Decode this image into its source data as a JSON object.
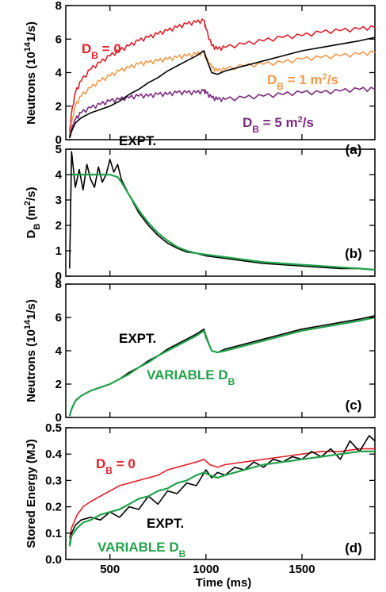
{
  "colors": {
    "black": "#000000",
    "red": "#e0202a",
    "orange": "#f29a4e",
    "purple": "#7b2a7e",
    "green": "#22a24a"
  },
  "xaxis": {
    "label": "Time (ms)",
    "range": [
      270,
      1880
    ],
    "ticks": [
      500,
      1000,
      1500
    ]
  },
  "chart_data": [
    {
      "panel": "(a)",
      "type": "line",
      "ylabel": {
        "main": "Neutrons (10",
        "sup": "14",
        "tail": "1/s)"
      },
      "ylim": [
        0,
        8
      ],
      "yticks": [
        0,
        2,
        4,
        6,
        8
      ],
      "annotations": [
        {
          "key": "red",
          "text": "D",
          "sub": "B",
          "rest": " = 0",
          "sup": "",
          "tail": ""
        },
        {
          "key": "orange",
          "text": "D",
          "sub": "B",
          "rest": " = 1 m",
          "sup": "2",
          "tail": "/s"
        },
        {
          "key": "purple",
          "text": "D",
          "sub": "B",
          "rest": " = 5 m",
          "sup": "2",
          "tail": "/s"
        },
        {
          "key": "black",
          "text": "EXPT.",
          "sub": "",
          "rest": "",
          "sup": "",
          "tail": ""
        }
      ],
      "series": [
        {
          "color": "red",
          "x": [
            290,
            300,
            320,
            350,
            400,
            450,
            500,
            550,
            600,
            650,
            700,
            750,
            800,
            850,
            900,
            950,
            990,
            1000,
            1030,
            1060,
            1100,
            1200,
            1300,
            1400,
            1500,
            1600,
            1700,
            1800,
            1880
          ],
          "y": [
            0.4,
            1.6,
            2.8,
            3.5,
            4.2,
            4.6,
            5.0,
            5.3,
            5.6,
            5.9,
            6.1,
            6.3,
            6.5,
            6.7,
            6.9,
            7.0,
            7.1,
            6.6,
            5.6,
            5.4,
            5.5,
            5.7,
            5.9,
            6.1,
            6.2,
            6.4,
            6.5,
            6.6,
            6.7
          ]
        },
        {
          "color": "orange",
          "x": [
            290,
            300,
            320,
            350,
            400,
            450,
            500,
            550,
            600,
            650,
            700,
            750,
            800,
            850,
            900,
            950,
            990,
            1000,
            1030,
            1060,
            1100,
            1200,
            1300,
            1400,
            1500,
            1600,
            1700,
            1800,
            1880
          ],
          "y": [
            0.2,
            1.0,
            2.0,
            2.6,
            3.1,
            3.5,
            3.8,
            4.1,
            4.3,
            4.5,
            4.6,
            4.7,
            4.8,
            4.9,
            5.0,
            5.1,
            5.2,
            4.9,
            4.3,
            4.1,
            4.2,
            4.4,
            4.5,
            4.6,
            4.8,
            4.9,
            5.0,
            5.1,
            5.2
          ]
        },
        {
          "color": "purple",
          "x": [
            290,
            300,
            320,
            350,
            400,
            450,
            500,
            550,
            600,
            650,
            700,
            750,
            800,
            850,
            900,
            950,
            990,
            1000,
            1030,
            1060,
            1100,
            1200,
            1300,
            1400,
            1500,
            1600,
            1700,
            1800,
            1880
          ],
          "y": [
            0.1,
            0.6,
            1.2,
            1.6,
            1.9,
            2.1,
            2.3,
            2.4,
            2.5,
            2.6,
            2.6,
            2.7,
            2.7,
            2.8,
            2.8,
            2.8,
            2.9,
            2.8,
            2.5,
            2.4,
            2.4,
            2.5,
            2.6,
            2.7,
            2.8,
            2.8,
            2.9,
            3.0,
            3.0
          ]
        },
        {
          "color": "black",
          "x": [
            290,
            300,
            320,
            350,
            400,
            450,
            500,
            550,
            600,
            650,
            700,
            750,
            800,
            850,
            900,
            950,
            990,
            1000,
            1030,
            1060,
            1100,
            1200,
            1300,
            1400,
            1500,
            1600,
            1700,
            1800,
            1880
          ],
          "y": [
            0.1,
            0.5,
            1.0,
            1.3,
            1.6,
            1.8,
            2.0,
            2.3,
            2.7,
            3.0,
            3.4,
            3.7,
            4.1,
            4.4,
            4.7,
            5.0,
            5.3,
            4.9,
            4.0,
            3.9,
            4.1,
            4.4,
            4.7,
            5.0,
            5.3,
            5.5,
            5.7,
            5.9,
            6.1
          ]
        }
      ]
    },
    {
      "panel": "(b)",
      "type": "line",
      "ylabel": {
        "main": "D",
        "sub": "B",
        "tail": " (m",
        "sup": "2",
        "tail2": "/s)"
      },
      "ylim": [
        0,
        5
      ],
      "yticks": [
        0,
        1,
        2,
        3,
        4,
        5
      ],
      "series": [
        {
          "color": "black",
          "x": [
            290,
            300,
            320,
            340,
            360,
            380,
            400,
            420,
            440,
            460,
            480,
            500,
            520,
            540,
            560,
            600,
            650,
            700,
            750,
            800,
            850,
            900,
            950,
            1000,
            1100,
            1200,
            1300,
            1400,
            1500,
            1600,
            1700,
            1800,
            1880
          ],
          "y": [
            0.3,
            4.9,
            3.5,
            4.2,
            3.4,
            4.4,
            3.8,
            3.5,
            4.3,
            3.7,
            4.0,
            4.6,
            4.1,
            4.4,
            3.8,
            3.2,
            2.5,
            2.0,
            1.6,
            1.3,
            1.1,
            0.95,
            0.9,
            0.8,
            0.7,
            0.6,
            0.5,
            0.45,
            0.4,
            0.35,
            0.3,
            0.3,
            0.25
          ]
        },
        {
          "color": "green",
          "x": [
            300,
            350,
            400,
            450,
            500,
            540,
            560,
            600,
            650,
            700,
            750,
            800,
            850,
            900,
            950,
            1000,
            1100,
            1200,
            1300,
            1400,
            1500,
            1600,
            1700,
            1800,
            1880
          ],
          "y": [
            4.0,
            4.0,
            4.0,
            4.0,
            4.0,
            3.9,
            3.7,
            3.2,
            2.6,
            2.1,
            1.7,
            1.4,
            1.15,
            1.0,
            0.9,
            0.85,
            0.75,
            0.65,
            0.55,
            0.5,
            0.45,
            0.4,
            0.35,
            0.3,
            0.25
          ]
        }
      ]
    },
    {
      "panel": "(c)",
      "type": "line",
      "ylabel": {
        "main": "Neutrons (10",
        "sup": "14",
        "tail": "1/s)"
      },
      "ylim": [
        0,
        8
      ],
      "yticks": [
        0,
        2,
        4,
        6,
        8
      ],
      "annotations": [
        {
          "key": "black",
          "text": "EXPT.",
          "sub": "",
          "rest": "",
          "sup": "",
          "tail": ""
        },
        {
          "key": "green",
          "text": "VARIABLE D",
          "sub": "B",
          "rest": "",
          "sup": "",
          "tail": ""
        }
      ],
      "series": [
        {
          "color": "black",
          "x": [
            290,
            300,
            320,
            350,
            400,
            450,
            500,
            550,
            600,
            650,
            700,
            750,
            800,
            850,
            900,
            950,
            990,
            1000,
            1030,
            1060,
            1100,
            1200,
            1300,
            1400,
            1500,
            1600,
            1700,
            1800,
            1880
          ],
          "y": [
            0.1,
            0.5,
            1.0,
            1.3,
            1.6,
            1.8,
            2.0,
            2.3,
            2.7,
            3.0,
            3.4,
            3.7,
            4.1,
            4.4,
            4.7,
            5.0,
            5.3,
            4.9,
            4.0,
            3.9,
            4.1,
            4.4,
            4.7,
            5.0,
            5.3,
            5.5,
            5.7,
            5.9,
            6.1
          ]
        },
        {
          "color": "green",
          "x": [
            290,
            300,
            320,
            350,
            400,
            450,
            500,
            550,
            600,
            650,
            700,
            750,
            800,
            850,
            900,
            950,
            990,
            1000,
            1030,
            1060,
            1100,
            1200,
            1300,
            1400,
            1500,
            1600,
            1700,
            1800,
            1880
          ],
          "y": [
            0.1,
            0.5,
            1.0,
            1.3,
            1.6,
            1.8,
            2.0,
            2.3,
            2.6,
            3.0,
            3.3,
            3.7,
            4.0,
            4.3,
            4.6,
            4.9,
            5.2,
            4.8,
            4.0,
            3.9,
            4.0,
            4.3,
            4.6,
            4.9,
            5.2,
            5.4,
            5.6,
            5.8,
            6.0
          ]
        }
      ]
    },
    {
      "panel": "(d)",
      "type": "line",
      "ylabel": {
        "main": "Stored Energy (MJ)"
      },
      "ylim": [
        0,
        0.5
      ],
      "yticks": [
        0.0,
        0.1,
        0.2,
        0.3,
        0.4,
        0.5
      ],
      "annotations": [
        {
          "key": "red",
          "text": "D",
          "sub": "B",
          "rest": " = 0",
          "sup": "",
          "tail": ""
        },
        {
          "key": "black",
          "text": "EXPT.",
          "sub": "",
          "rest": "",
          "sup": "",
          "tail": ""
        },
        {
          "key": "green",
          "text": "VARIABLE D",
          "sub": "B",
          "rest": "",
          "sup": "",
          "tail": ""
        }
      ],
      "series": [
        {
          "color": "red",
          "x": [
            290,
            300,
            330,
            360,
            400,
            450,
            500,
            550,
            600,
            650,
            700,
            750,
            800,
            850,
            900,
            950,
            990,
            1020,
            1060,
            1100,
            1200,
            1300,
            1400,
            1500,
            1600,
            1700,
            1800,
            1880
          ],
          "y": [
            0.08,
            0.12,
            0.17,
            0.2,
            0.22,
            0.24,
            0.26,
            0.28,
            0.29,
            0.3,
            0.31,
            0.32,
            0.34,
            0.35,
            0.36,
            0.37,
            0.38,
            0.36,
            0.35,
            0.36,
            0.37,
            0.38,
            0.39,
            0.4,
            0.41,
            0.41,
            0.42,
            0.42
          ]
        },
        {
          "color": "black",
          "x": [
            290,
            300,
            320,
            350,
            400,
            450,
            500,
            550,
            600,
            650,
            700,
            750,
            800,
            850,
            900,
            950,
            1000,
            1030,
            1060,
            1100,
            1150,
            1200,
            1250,
            1300,
            1350,
            1400,
            1450,
            1500,
            1550,
            1600,
            1650,
            1700,
            1750,
            1800,
            1850,
            1880
          ],
          "y": [
            0.06,
            0.1,
            0.13,
            0.15,
            0.16,
            0.15,
            0.18,
            0.16,
            0.2,
            0.19,
            0.24,
            0.21,
            0.26,
            0.25,
            0.29,
            0.28,
            0.34,
            0.31,
            0.33,
            0.32,
            0.35,
            0.34,
            0.37,
            0.35,
            0.38,
            0.37,
            0.39,
            0.38,
            0.41,
            0.39,
            0.42,
            0.38,
            0.45,
            0.41,
            0.47,
            0.45
          ]
        },
        {
          "color": "green",
          "x": [
            290,
            300,
            330,
            360,
            400,
            450,
            500,
            550,
            600,
            650,
            700,
            750,
            800,
            850,
            900,
            950,
            990,
            1020,
            1060,
            1100,
            1200,
            1300,
            1400,
            1500,
            1600,
            1700,
            1800,
            1880
          ],
          "y": [
            0.05,
            0.09,
            0.12,
            0.14,
            0.15,
            0.17,
            0.18,
            0.19,
            0.21,
            0.23,
            0.24,
            0.26,
            0.27,
            0.29,
            0.3,
            0.32,
            0.33,
            0.32,
            0.31,
            0.32,
            0.34,
            0.36,
            0.37,
            0.38,
            0.39,
            0.4,
            0.41,
            0.41
          ]
        }
      ]
    }
  ]
}
